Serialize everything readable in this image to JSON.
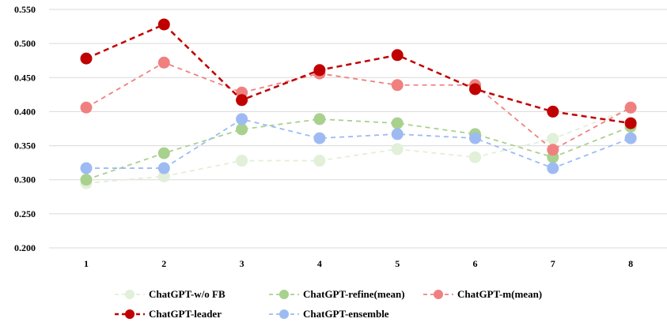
{
  "chart_data": {
    "type": "line",
    "categories": [
      "1",
      "2",
      "3",
      "4",
      "5",
      "6",
      "7",
      "8"
    ],
    "ylim": [
      0.2,
      0.55
    ],
    "yticks": [
      "0.200",
      "0.250",
      "0.300",
      "0.350",
      "0.400",
      "0.450",
      "0.500",
      "0.550"
    ],
    "ytick_values": [
      0.2,
      0.25,
      0.3,
      0.35,
      0.4,
      0.45,
      0.5,
      0.55
    ],
    "grid": true,
    "legend_position": "bottom",
    "series": [
      {
        "name": "ChatGPT-w/o FB",
        "color": "#e2efd9",
        "values": [
          0.295,
          0.305,
          0.328,
          0.328,
          0.345,
          0.333,
          0.36,
          0.405
        ]
      },
      {
        "name": "ChatGPT-refine(mean)",
        "color": "#a9d18e",
        "values": [
          0.3,
          0.339,
          0.374,
          0.389,
          0.383,
          0.367,
          0.333,
          0.378
        ]
      },
      {
        "name": "ChatGPT-m(mean)",
        "color": "#f08080",
        "values": [
          0.406,
          0.472,
          0.428,
          0.456,
          0.439,
          0.439,
          0.344,
          0.406
        ]
      },
      {
        "name": "ChatGPT-leader",
        "color": "#c00000",
        "values": [
          0.478,
          0.528,
          0.417,
          0.461,
          0.483,
          0.433,
          0.4,
          0.383
        ]
      },
      {
        "name": "ChatGPT-ensemble",
        "color": "#9dbbf2",
        "values": [
          0.317,
          0.317,
          0.389,
          0.361,
          0.367,
          0.361,
          0.317,
          0.361
        ]
      }
    ]
  }
}
